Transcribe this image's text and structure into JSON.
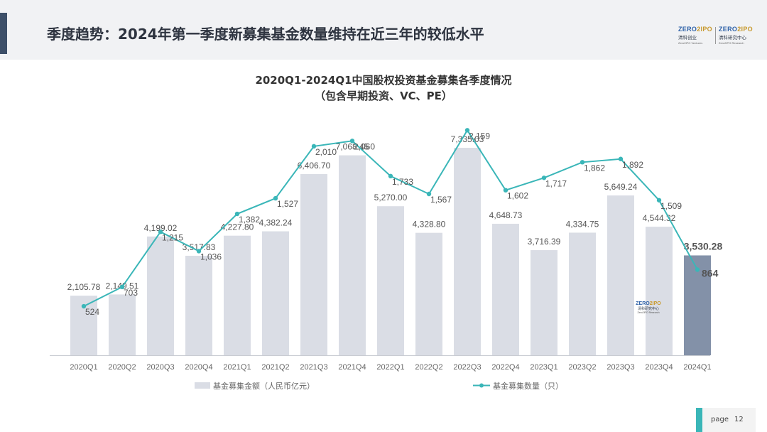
{
  "header": {
    "title": "季度趋势：2024年第一季度新募集基金数量维持在近三年的较低水平",
    "logos": [
      {
        "brand_a": "ZERO",
        "brand_b": "IPO",
        "cn": "清科创业",
        "en": "Zero2IPO Ventures"
      },
      {
        "brand_a": "ZERO",
        "brand_b": "IPO",
        "cn": "清科研究中心",
        "en": "Zero2IPO Research"
      }
    ]
  },
  "chart_data": {
    "type": "bar+line",
    "title": "2020Q1-2024Q1中国股权投资基金募集各季度情况",
    "subtitle": "（包含早期投资、VC、PE）",
    "categories": [
      "2020Q1",
      "2020Q2",
      "2020Q3",
      "2020Q4",
      "2021Q1",
      "2021Q2",
      "2021Q3",
      "2021Q4",
      "2022Q1",
      "2022Q2",
      "2022Q3",
      "2022Q4",
      "2023Q1",
      "2023Q2",
      "2023Q3",
      "2023Q4",
      "2024Q1"
    ],
    "series": [
      {
        "name": "基金募集金额（人民币亿元）",
        "type": "bar",
        "values": [
          2105.78,
          2149.51,
          4199.02,
          3517.83,
          4227.8,
          4382.24,
          6406.7,
          7068.45,
          5270.0,
          4328.8,
          7335.03,
          4648.73,
          3716.39,
          4334.75,
          5649.24,
          4544.32,
          3530.28
        ],
        "labels": [
          "2,105.78",
          "2,149.51",
          "4,199.02",
          "3,517.83",
          "4,227.80",
          "4,382.24",
          "6,406.70",
          "7,068.45",
          "5,270.00",
          "4,328.80",
          "7,335.03",
          "4,648.73",
          "3,716.39",
          "4,334.75",
          "5,649.24",
          "4,544.32",
          "3,530.28"
        ]
      },
      {
        "name": "基金募集数量（只）",
        "type": "line",
        "values": [
          524,
          703,
          1215,
          1036,
          1382,
          1527,
          2010,
          2060,
          1733,
          1567,
          2159,
          1602,
          1717,
          1862,
          1892,
          1509,
          864
        ],
        "labels": [
          "524",
          "703",
          "1,215",
          "1,036",
          "1,382",
          "1,527",
          "2,010",
          "2,060",
          "1,733",
          "1,567",
          "2,159",
          "1,602",
          "1,717",
          "1,862",
          "1,892",
          "1,509",
          "864"
        ]
      }
    ],
    "colors": {
      "bar": "#dadde5",
      "bar_highlight": "#8391a8",
      "line": "#3ab6b8"
    },
    "highlight_index": 16,
    "legend_position": "bottom",
    "grid": false
  },
  "watermark": {
    "brand_a": "ZERO",
    "brand_b": "IPO",
    "cn": "清科研究中心",
    "en": "Zero2IPO Research"
  },
  "footer": {
    "page_label": "page",
    "page_number": "12"
  }
}
